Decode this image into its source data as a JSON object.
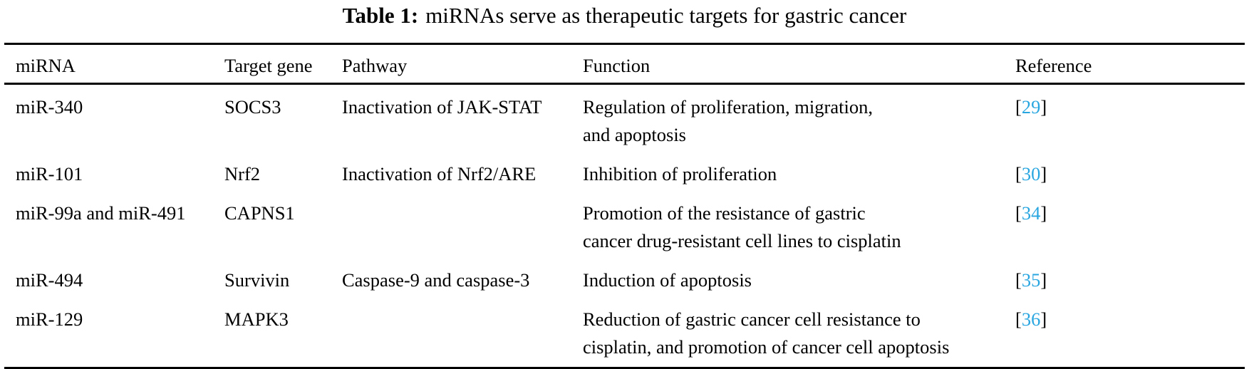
{
  "title": {
    "label": "Table 1:",
    "text": "miRNAs serve as therapeutic targets for gastric cancer"
  },
  "columns": [
    "miRNA",
    "Target gene",
    "Pathway",
    "Function",
    "Reference"
  ],
  "rows": [
    {
      "mirna": "miR-340",
      "target": "SOCS3",
      "pathway": "Inactivation of JAK-STAT",
      "function": [
        "Regulation of proliferation, migration,",
        "and apoptosis"
      ],
      "ref": "29"
    },
    {
      "mirna": "miR-101",
      "target": "Nrf2",
      "pathway": "Inactivation of Nrf2/ARE",
      "function": [
        "Inhibition of proliferation"
      ],
      "ref": "30"
    },
    {
      "mirna": "miR-99a and miR-491",
      "target": "CAPNS1",
      "pathway": "",
      "function": [
        "Promotion of the resistance of gastric",
        "cancer drug-resistant cell lines to cisplatin"
      ],
      "ref": "34"
    },
    {
      "mirna": "miR-494",
      "target": "Survivin",
      "pathway": "Caspase-9 and caspase-3",
      "function": [
        "Induction of apoptosis"
      ],
      "ref": "35"
    },
    {
      "mirna": "miR-129",
      "target": "MAPK3",
      "pathway": "",
      "function": [
        "Reduction of gastric cancer cell resistance to",
        "cisplatin, and promotion of cancer cell apoptosis"
      ],
      "ref": "36"
    }
  ],
  "colors": {
    "link": "#29a6e0"
  }
}
